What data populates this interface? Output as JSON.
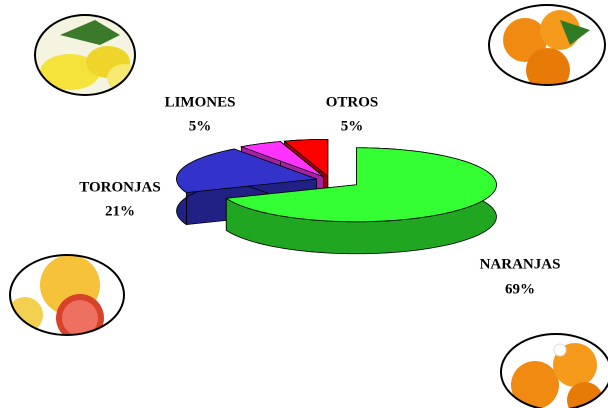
{
  "chart_data": {
    "type": "pie",
    "categories": [
      "NARANJAS",
      "TORONJAS",
      "LIMONES",
      "OTROS"
    ],
    "values": [
      69,
      21,
      5,
      5
    ],
    "value_labels": [
      "69%",
      "21%",
      "5%",
      "5%"
    ],
    "colors": [
      "#33ff33",
      "#3333cc",
      "#ff33ff",
      "#ff0000"
    ]
  }
}
